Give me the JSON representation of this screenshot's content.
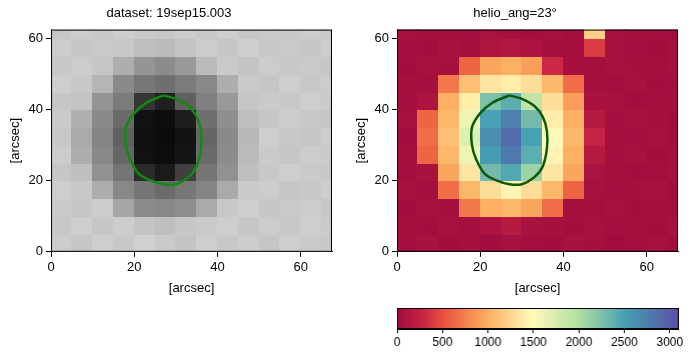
{
  "chart_data": [
    {
      "type": "heatmap",
      "title": "dataset: 19sep15.003",
      "xlabel": "[arcsec]",
      "ylabel": "[arcsec]",
      "xlim": [
        0,
        67.5
      ],
      "ylim": [
        0,
        62.5
      ],
      "xticks": [
        0,
        20,
        40,
        60
      ],
      "yticks": [
        0,
        20,
        40,
        60
      ],
      "color": "gray",
      "color_range": [
        0,
        1.2
      ],
      "x": [
        2.5,
        7.5,
        12.5,
        17.5,
        22.5,
        27.5,
        32.5,
        37.5,
        42.5,
        47.5,
        52.5,
        57.5,
        62.5,
        67.5
      ],
      "y": [
        2.5,
        7.5,
        12.5,
        17.5,
        22.5,
        27.5,
        32.5,
        37.5,
        42.5,
        47.5,
        52.5,
        57.5,
        62.5
      ],
      "cells": [
        [
          0.96,
          0.93,
          0.97,
          0.94,
          0.98,
          0.95,
          0.92,
          0.97,
          0.94,
          0.96,
          0.93,
          0.97,
          0.95,
          0.94
        ],
        [
          0.94,
          0.97,
          0.93,
          0.96,
          0.92,
          0.9,
          0.93,
          0.95,
          0.97,
          0.93,
          0.96,
          0.94,
          0.97,
          0.95
        ],
        [
          0.95,
          0.93,
          0.96,
          0.78,
          0.66,
          0.64,
          0.67,
          0.8,
          0.94,
          0.97,
          0.93,
          0.95,
          0.96,
          0.93
        ],
        [
          0.97,
          0.94,
          0.82,
          0.64,
          0.55,
          0.5,
          0.56,
          0.62,
          0.8,
          0.95,
          0.96,
          0.93,
          0.94,
          0.97
        ],
        [
          0.93,
          0.9,
          0.68,
          0.55,
          0.2,
          0.12,
          0.3,
          0.55,
          0.68,
          0.9,
          0.94,
          0.97,
          0.95,
          0.94
        ],
        [
          0.96,
          0.82,
          0.64,
          0.48,
          0.08,
          0.06,
          0.1,
          0.5,
          0.66,
          0.88,
          0.95,
          0.93,
          0.96,
          0.95
        ],
        [
          0.94,
          0.8,
          0.62,
          0.45,
          0.07,
          0.05,
          0.09,
          0.48,
          0.65,
          0.87,
          0.97,
          0.94,
          0.93,
          0.96
        ],
        [
          0.95,
          0.83,
          0.65,
          0.5,
          0.08,
          0.06,
          0.14,
          0.52,
          0.67,
          0.9,
          0.93,
          0.96,
          0.94,
          0.92
        ],
        [
          0.93,
          0.92,
          0.7,
          0.58,
          0.25,
          0.15,
          0.45,
          0.6,
          0.72,
          0.93,
          0.95,
          0.94,
          0.97,
          0.95
        ],
        [
          0.97,
          0.94,
          0.85,
          0.65,
          0.56,
          0.52,
          0.58,
          0.64,
          0.82,
          0.95,
          0.93,
          0.97,
          0.94,
          0.96
        ],
        [
          0.94,
          0.96,
          0.93,
          0.82,
          0.7,
          0.66,
          0.72,
          0.88,
          0.95,
          0.92,
          0.96,
          0.94,
          0.95,
          0.93
        ],
        [
          0.96,
          0.93,
          0.95,
          0.94,
          0.9,
          0.88,
          0.92,
          0.96,
          0.93,
          0.97,
          0.94,
          0.95,
          0.93,
          0.96
        ],
        [
          0.93,
          0.96,
          0.94,
          0.97,
          0.95,
          0.93,
          0.96,
          0.94,
          0.97,
          0.93,
          0.95,
          0.94,
          0.96,
          0.95
        ]
      ],
      "contour": {
        "color": "#118a11",
        "x": [
          27,
          30,
          33,
          35,
          36,
          36,
          35,
          33,
          30,
          27,
          24,
          21,
          19,
          18,
          18,
          20,
          23,
          27
        ],
        "y": [
          44,
          43,
          41,
          38,
          34,
          29,
          24,
          21,
          19,
          19,
          20,
          22,
          26,
          30,
          35,
          39,
          42,
          44
        ]
      }
    },
    {
      "type": "heatmap",
      "title": "helio_ang=23°",
      "xlabel": "[arcsec]",
      "ylabel": "[arcsec]",
      "xlim": [
        0,
        67.5
      ],
      "ylim": [
        0,
        62.5
      ],
      "xticks": [
        0,
        20,
        40,
        60
      ],
      "yticks": [
        0,
        20,
        40,
        60
      ],
      "color": "spectral",
      "color_range": [
        0,
        3100
      ],
      "color_ticks": [
        0,
        500,
        1000,
        1500,
        2000,
        2500,
        3000
      ],
      "x": [
        2.5,
        7.5,
        12.5,
        17.5,
        22.5,
        27.5,
        32.5,
        37.5,
        42.5,
        47.5,
        52.5,
        57.5,
        62.5,
        67.5
      ],
      "y": [
        2.5,
        7.5,
        12.5,
        17.5,
        22.5,
        27.5,
        32.5,
        37.5,
        42.5,
        47.5,
        52.5,
        57.5,
        62.5
      ],
      "cells": [
        [
          30,
          60,
          20,
          40,
          10,
          50,
          30,
          20,
          60,
          40,
          10,
          30,
          50,
          20
        ],
        [
          40,
          20,
          50,
          30,
          80,
          150,
          60,
          40,
          20,
          50,
          30,
          40,
          20,
          60
        ],
        [
          20,
          50,
          30,
          700,
          1000,
          1050,
          950,
          650,
          40,
          30,
          60,
          20,
          40,
          30
        ],
        [
          50,
          30,
          650,
          1050,
          1300,
          1450,
          1300,
          1050,
          600,
          50,
          30,
          40,
          60,
          20
        ],
        [
          30,
          60,
          950,
          1350,
          2300,
          2450,
          2100,
          1350,
          950,
          70,
          40,
          20,
          30,
          50
        ],
        [
          40,
          600,
          1050,
          1600,
          2550,
          2800,
          2400,
          1450,
          1000,
          150,
          30,
          50,
          20,
          40
        ],
        [
          20,
          650,
          1100,
          1700,
          2650,
          2900,
          2500,
          1500,
          1050,
          250,
          40,
          30,
          50,
          30
        ],
        [
          50,
          600,
          1050,
          1600,
          2500,
          2750,
          2300,
          1400,
          1000,
          150,
          30,
          60,
          40,
          20
        ],
        [
          30,
          80,
          1000,
          1400,
          2250,
          2400,
          1900,
          1300,
          900,
          60,
          50,
          20,
          30,
          40
        ],
        [
          40,
          30,
          700,
          1100,
          1350,
          1400,
          1300,
          1050,
          650,
          40,
          30,
          50,
          20,
          30
        ],
        [
          20,
          50,
          40,
          600,
          950,
          1000,
          900,
          300,
          40,
          30,
          60,
          40,
          30,
          50
        ],
        [
          30,
          20,
          60,
          40,
          100,
          120,
          80,
          40,
          30,
          400,
          50,
          30,
          20,
          40
        ],
        [
          50,
          40,
          20,
          30,
          60,
          40,
          30,
          50,
          20,
          1200,
          60,
          40,
          30,
          20
        ]
      ],
      "contour": {
        "color": "#0a5a0a",
        "x": [
          27,
          30,
          33,
          35,
          36,
          36,
          35,
          33,
          30,
          27,
          24,
          21,
          19,
          18,
          18,
          20,
          23,
          27
        ],
        "y": [
          44,
          43,
          41,
          38,
          34,
          29,
          24,
          21,
          19,
          19,
          20,
          22,
          26,
          30,
          35,
          39,
          42,
          44
        ]
      }
    }
  ]
}
